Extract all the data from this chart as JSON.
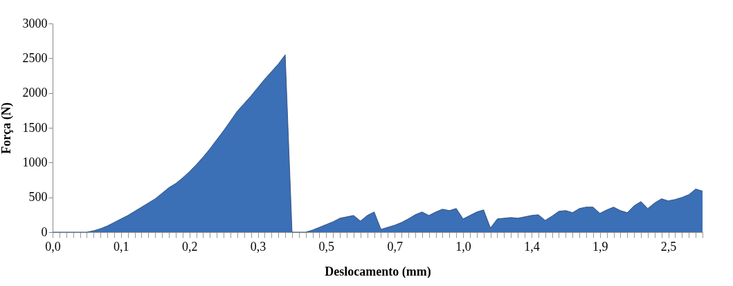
{
  "chart_data": {
    "type": "area",
    "xlabel": "Deslocamento (mm)",
    "ylabel": "Força (N)",
    "categories": [
      "0,0",
      null,
      null,
      null,
      null,
      null,
      null,
      null,
      null,
      null,
      "0,1",
      null,
      null,
      null,
      null,
      null,
      null,
      null,
      null,
      null,
      "0,2",
      null,
      null,
      null,
      null,
      null,
      null,
      null,
      null,
      null,
      "0,3",
      null,
      null,
      null,
      null,
      null,
      null,
      null,
      null,
      null,
      "0,5",
      null,
      null,
      null,
      null,
      null,
      null,
      null,
      null,
      null,
      "0,7",
      null,
      null,
      null,
      null,
      null,
      null,
      null,
      null,
      null,
      "1,0",
      null,
      null,
      null,
      null,
      null,
      null,
      null,
      null,
      null,
      "1,4",
      null,
      null,
      null,
      null,
      null,
      null,
      null,
      null,
      null,
      "1,9",
      null,
      null,
      null,
      null,
      null,
      null,
      null,
      null,
      null,
      "2,5",
      null,
      null,
      null,
      null,
      null
    ],
    "series": [
      {
        "color": "#3b6fb6",
        "values": [
          0,
          0,
          0,
          0,
          0,
          0,
          20,
          50,
          90,
          140,
          190,
          240,
          300,
          360,
          420,
          480,
          560,
          640,
          700,
          780,
          870,
          970,
          1080,
          1200,
          1330,
          1460,
          1600,
          1740,
          1850,
          1960,
          2080,
          2200,
          2310,
          2420,
          2550,
          0,
          0,
          0,
          30,
          70,
          110,
          150,
          200,
          220,
          240,
          160,
          240,
          290,
          40,
          70,
          100,
          140,
          190,
          250,
          290,
          240,
          290,
          330,
          310,
          340,
          190,
          240,
          290,
          320,
          60,
          190,
          200,
          210,
          200,
          220,
          240,
          250,
          170,
          230,
          300,
          310,
          280,
          340,
          360,
          360,
          270,
          320,
          360,
          310,
          280,
          380,
          440,
          340,
          420,
          480,
          450,
          470,
          500,
          540,
          620,
          590
        ]
      }
    ],
    "ylim": [
      0,
      3000
    ],
    "yticks": [
      0,
      500,
      1000,
      1500,
      2000,
      2500,
      3000
    ],
    "grid": false,
    "legend": false
  }
}
